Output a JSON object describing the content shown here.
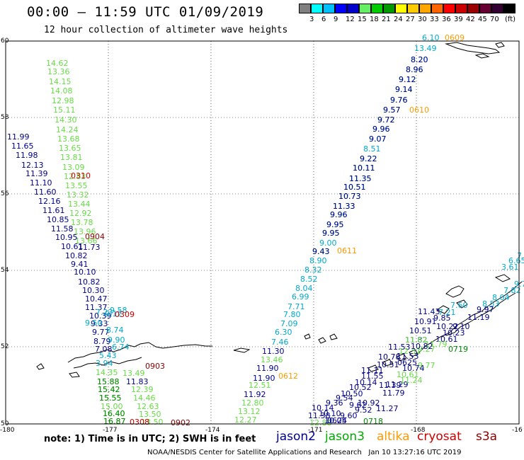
{
  "title": "00:00 – 11:59 UTC 01/09/2019",
  "subtitle": "12 hour collection of altimeter wave heights",
  "scale": {
    "unit": "(ft)",
    "colors": [
      "#808080",
      "#00ffff",
      "#00bfff",
      "#0000ff",
      "#0000cd",
      "#66ee66",
      "#00cc00",
      "#009900",
      "#ffff00",
      "#ffcc00",
      "#ffa500",
      "#ff6600",
      "#ff0000",
      "#cc0000",
      "#990000",
      "#660033",
      "#330033",
      "#000000"
    ],
    "labels": [
      "3",
      "6",
      "9",
      "12",
      "15",
      "18",
      "21",
      "24",
      "27",
      "30",
      "33",
      "36",
      "39",
      "42",
      "45",
      "70"
    ]
  },
  "axes": {
    "lat_labels": [
      "60",
      "58",
      "56",
      "54",
      "52",
      "50"
    ],
    "lon_labels": [
      "-180",
      "-177",
      "-174",
      "-171",
      "-168",
      "-16"
    ]
  },
  "colors": {
    "jason2": "#00008b",
    "jason3": "#00aa00",
    "altika": "#ff9900",
    "cryosat": "#cc0000",
    "s3a": "#8b0000",
    "lightgreen": "#66dd44",
    "cyan": "#00aacc",
    "darkgreen": "#008800"
  },
  "tracks": [
    {
      "color": "lightgreen",
      "items": [
        [
          "14.62",
          65,
          93
        ],
        [
          "13.36",
          67,
          105
        ],
        [
          "14.15",
          69,
          119
        ],
        [
          "14.08",
          71,
          132
        ],
        [
          "12.98",
          73,
          146
        ],
        [
          "15.11",
          75,
          159
        ],
        [
          "14.30",
          77,
          173
        ],
        [
          "14.24",
          79,
          187
        ],
        [
          "13.68",
          81,
          200
        ],
        [
          "13.65",
          83,
          213
        ],
        [
          "13.81",
          85,
          226
        ],
        [
          "13.09",
          88,
          240
        ],
        [
          "12.83",
          90,
          253
        ],
        [
          "13.55",
          92,
          266
        ],
        [
          "13.32",
          94,
          279
        ],
        [
          "13.44",
          96,
          292
        ],
        [
          "12.92",
          98,
          305
        ],
        [
          "13.78",
          100,
          318
        ],
        [
          "13.96",
          104,
          331
        ],
        [
          "13.66",
          106,
          344
        ]
      ]
    },
    {
      "color": "jason2",
      "items": [
        [
          "11.99",
          10,
          197
        ],
        [
          "11.65",
          16,
          210
        ],
        [
          "11.98",
          22,
          223
        ],
        [
          "12.13",
          30,
          237
        ],
        [
          "11.39",
          36,
          249
        ],
        [
          "11.10",
          42,
          262
        ],
        [
          "11.60",
          48,
          275
        ],
        [
          "12.16",
          54,
          288
        ],
        [
          "11.61",
          60,
          301
        ],
        [
          "10.85",
          66,
          314
        ],
        [
          "11.58",
          72,
          327
        ],
        [
          "10.95",
          78,
          339
        ],
        [
          "10.61",
          86,
          352
        ],
        [
          "10.82",
          92,
          365
        ],
        [
          "9.41",
          100,
          377
        ],
        [
          "10.10",
          104,
          388
        ],
        [
          "10.82",
          110,
          402
        ],
        [
          "10.30",
          116,
          414
        ],
        [
          "10.47",
          120,
          426
        ],
        [
          "11.37",
          120,
          438
        ],
        [
          "10.39",
          126,
          450
        ],
        [
          "9.33",
          128,
          461
        ],
        [
          "9.77",
          130,
          473
        ],
        [
          "8.79",
          132,
          486
        ],
        [
          "7.08",
          134,
          497
        ]
      ]
    },
    {
      "color": "jason2",
      "items": [
        [
          "11.73",
          110,
          353
        ]
      ]
    },
    {
      "color": "cyan",
      "items": [
        [
          "9.50",
          120,
          460
        ],
        [
          "8.74",
          150,
          470
        ],
        [
          "9.90",
          152,
          484
        ],
        [
          "6.74",
          158,
          494
        ],
        [
          "5.43",
          140,
          506
        ],
        [
          "3.94",
          135,
          517
        ]
      ]
    },
    {
      "color": "cyan",
      "items": [
        [
          "7.23",
          135,
          445
        ],
        [
          "9.12",
          148,
          447
        ],
        [
          "9.58",
          155,
          442
        ]
      ]
    },
    {
      "color": "jason2",
      "items": [
        [
          "11.83",
          178,
          543
        ]
      ]
    },
    {
      "color": "lightgreen",
      "items": [
        [
          "14.35",
          135,
          530
        ],
        [
          "13.49",
          173,
          531
        ],
        [
          "15.88",
          137,
          543
        ],
        [
          "15.42",
          138,
          554
        ],
        [
          "15.55",
          140,
          566
        ],
        [
          "15.00",
          142,
          578
        ],
        [
          "16.40",
          145,
          588
        ],
        [
          "16.87",
          146,
          599
        ],
        [
          "12.39",
          185,
          554
        ],
        [
          "14.46",
          188,
          566
        ],
        [
          "12.63",
          193,
          578
        ],
        [
          "13.50",
          196,
          589
        ],
        [
          "13.50",
          199,
          600
        ]
      ]
    },
    {
      "color": "darkgreen",
      "items": [
        [
          "15.88",
          137,
          543
        ],
        [
          "15.42",
          138,
          554
        ],
        [
          "15.55",
          140,
          566
        ],
        [
          "16.40",
          145,
          588
        ],
        [
          "16.87",
          146,
          599
        ]
      ]
    },
    {
      "color": "cryosat",
      "items": [
        [
          "0310",
          100,
          252
        ],
        [
          "0309",
          162,
          448
        ],
        [
          "0308",
          183,
          600
        ]
      ]
    },
    {
      "color": "s3a",
      "items": [
        [
          "0904",
          120,
          338
        ],
        [
          "0903",
          205,
          521
        ],
        [
          "0902",
          241,
          601
        ]
      ]
    },
    {
      "color": "lightgreen",
      "items": [
        [
          "13.46",
          368,
          512
        ],
        [
          "12.51",
          351,
          548
        ],
        [
          "12.80",
          341,
          573
        ],
        [
          "13.12",
          336,
          585
        ],
        [
          "12.27",
          331,
          597
        ],
        [
          "12.88",
          437,
          601
        ]
      ]
    },
    {
      "color": "jason2",
      "items": [
        [
          "11.30",
          370,
          500
        ],
        [
          "11.90",
          362,
          524
        ],
        [
          "11.90",
          357,
          538
        ],
        [
          "11.92",
          344,
          561
        ]
      ]
    },
    {
      "color": "cyan",
      "items": [
        [
          "6.10",
          596,
          57
        ],
        [
          "13.49",
          585,
          72
        ],
        [
          "8.20",
          580,
          88
        ],
        [
          "8.96",
          573,
          102
        ],
        [
          "9.12",
          563,
          116
        ],
        [
          "9.14",
          558,
          130
        ],
        [
          "9.76",
          551,
          145
        ],
        [
          "9.57",
          541,
          159
        ],
        [
          "9.72",
          533,
          173
        ],
        [
          "9.96",
          526,
          186
        ],
        [
          "9.07",
          521,
          200
        ],
        [
          "8.51",
          513,
          214
        ],
        [
          "9.22",
          508,
          228
        ],
        [
          "10.11",
          498,
          241
        ],
        [
          "11.35",
          493,
          256
        ],
        [
          "10.51",
          485,
          268
        ],
        [
          "10.73",
          478,
          281
        ],
        [
          "11.33",
          470,
          295
        ],
        [
          "9.96",
          466,
          307
        ],
        [
          "9.95",
          461,
          321
        ],
        [
          "9.95",
          455,
          333
        ],
        [
          "9.00",
          451,
          347
        ],
        [
          "9.43",
          441,
          359
        ],
        [
          "8.90",
          437,
          372
        ],
        [
          "8.32",
          430,
          385
        ],
        [
          "8.52",
          424,
          398
        ],
        [
          "8.04",
          417,
          411
        ],
        [
          "6.99",
          412,
          423
        ],
        [
          "7.71",
          406,
          437
        ],
        [
          "7.80",
          400,
          448
        ],
        [
          "7.09",
          396,
          461
        ],
        [
          "6.30",
          388,
          473
        ],
        [
          "7.46",
          383,
          487
        ]
      ]
    },
    {
      "color": "jason2",
      "items": [
        [
          "9.57",
          541,
          159
        ],
        [
          "9.72",
          533,
          173
        ],
        [
          "9.96",
          526,
          186
        ],
        [
          "9.07",
          521,
          200
        ],
        [
          "9.22",
          508,
          228
        ],
        [
          "10.11",
          498,
          241
        ],
        [
          "11.35",
          493,
          256
        ],
        [
          "10.51",
          485,
          268
        ],
        [
          "10.73",
          478,
          281
        ],
        [
          "11.33",
          470,
          295
        ],
        [
          "9.96",
          466,
          307
        ],
        [
          "9.95",
          461,
          321
        ],
        [
          "9.95",
          455,
          333
        ],
        [
          "9.43",
          441,
          359
        ],
        [
          "8.20",
          580,
          88
        ],
        [
          "8.96",
          573,
          102
        ],
        [
          "9.12",
          563,
          116
        ],
        [
          "9.14",
          558,
          130
        ],
        [
          "9.76",
          551,
          145
        ]
      ]
    },
    {
      "color": "altika",
      "items": [
        [
          "0609",
          628,
          57
        ],
        [
          "0610",
          578,
          159
        ],
        [
          "0611",
          476,
          358
        ],
        [
          "0612",
          393,
          535
        ]
      ]
    },
    {
      "color": "jason2",
      "items": [
        [
          "11.43",
          590,
          444
        ],
        [
          "10.91",
          585,
          458
        ],
        [
          "10.51",
          578,
          471
        ],
        [
          "11.82",
          572,
          484
        ],
        [
          "11.53",
          548,
          494
        ],
        [
          "10.78",
          534,
          508
        ],
        [
          "10.51",
          532,
          519
        ],
        [
          "11.11",
          510,
          527
        ],
        [
          "11.55",
          510,
          535
        ],
        [
          "10.14",
          501,
          544
        ],
        [
          "10.52",
          493,
          551
        ],
        [
          "10.50",
          481,
          560
        ],
        [
          "9.54",
          474,
          566
        ],
        [
          "9.36",
          460,
          573
        ],
        [
          "10.92",
          505,
          573
        ],
        [
          "9.52",
          501,
          583
        ],
        [
          "9.62",
          493,
          576
        ],
        [
          "9.60",
          480,
          591
        ],
        [
          "10.14",
          440,
          580
        ],
        [
          "10.10",
          450,
          588
        ],
        [
          "10.05",
          458,
          598
        ],
        [
          "11.38",
          435,
          591
        ]
      ]
    },
    {
      "color": "jason2",
      "items": [
        [
          "11.39",
          535,
          548
        ],
        [
          "11.79",
          540,
          559
        ],
        [
          "11.27",
          531,
          581
        ],
        [
          "11.29",
          545,
          547
        ]
      ]
    },
    {
      "color": "jason2",
      "items": [
        [
          "9.85",
          612,
          453
        ],
        [
          "10.22",
          616,
          465
        ],
        [
          "9.10",
          639,
          465
        ],
        [
          "11.19",
          660,
          452
        ],
        [
          "9.97",
          673,
          441
        ],
        [
          "10.61",
          615,
          483
        ],
        [
          "10.23",
          625,
          474
        ]
      ]
    },
    {
      "color": "cyan",
      "items": [
        [
          "7.",
          730,
          365
        ],
        [
          "6.65",
          718,
          372
        ],
        [
          "3.61",
          708,
          381
        ],
        [
          "9.70",
          726,
          405
        ],
        [
          "7.82",
          711,
          414
        ],
        [
          "8.04",
          695,
          424
        ],
        [
          "8.53",
          681,
          433
        ],
        [
          "7.60",
          636,
          435
        ],
        [
          "7.21",
          619,
          445
        ]
      ]
    },
    {
      "color": "lightgreen",
      "items": [
        [
          "11.79",
          600,
          490
        ],
        [
          "11.62",
          572,
          484
        ],
        [
          "12.51",
          563,
          500
        ],
        [
          "9.77",
          590,
          520
        ],
        [
          "10.61",
          560,
          533
        ],
        [
          "11.24",
          565,
          541
        ],
        [
          "9.27",
          590,
          497
        ]
      ]
    },
    {
      "color": "darkgreen",
      "items": [
        [
          "0719",
          633,
          497
        ],
        [
          "0718",
          513,
          599
        ]
      ]
    },
    {
      "color": "jason2",
      "items": [
        [
          "0625",
          561,
          516
        ],
        [
          "0624",
          462,
          598
        ]
      ]
    },
    {
      "color": "jason2",
      "items": [
        [
          "11.53",
          560,
          507
        ],
        [
          "10.74",
          568,
          524
        ],
        [
          "10.82",
          580,
          493
        ]
      ]
    }
  ],
  "note": "note: 1) Time is in UTC; 2) SWH is in feet",
  "satellites": [
    {
      "name": "jason2",
      "color_key": "jason2"
    },
    {
      "name": "jason3",
      "color_key": "jason3"
    },
    {
      "name": "altika",
      "color_key": "altika"
    },
    {
      "name": "cryosat",
      "color_key": "cryosat"
    },
    {
      "name": "s3a",
      "color_key": "s3a"
    }
  ],
  "credit": "NOAA/NESDIS Center for Satellite Applications and Research   Jan 10 13:27:16 UTC 2019"
}
